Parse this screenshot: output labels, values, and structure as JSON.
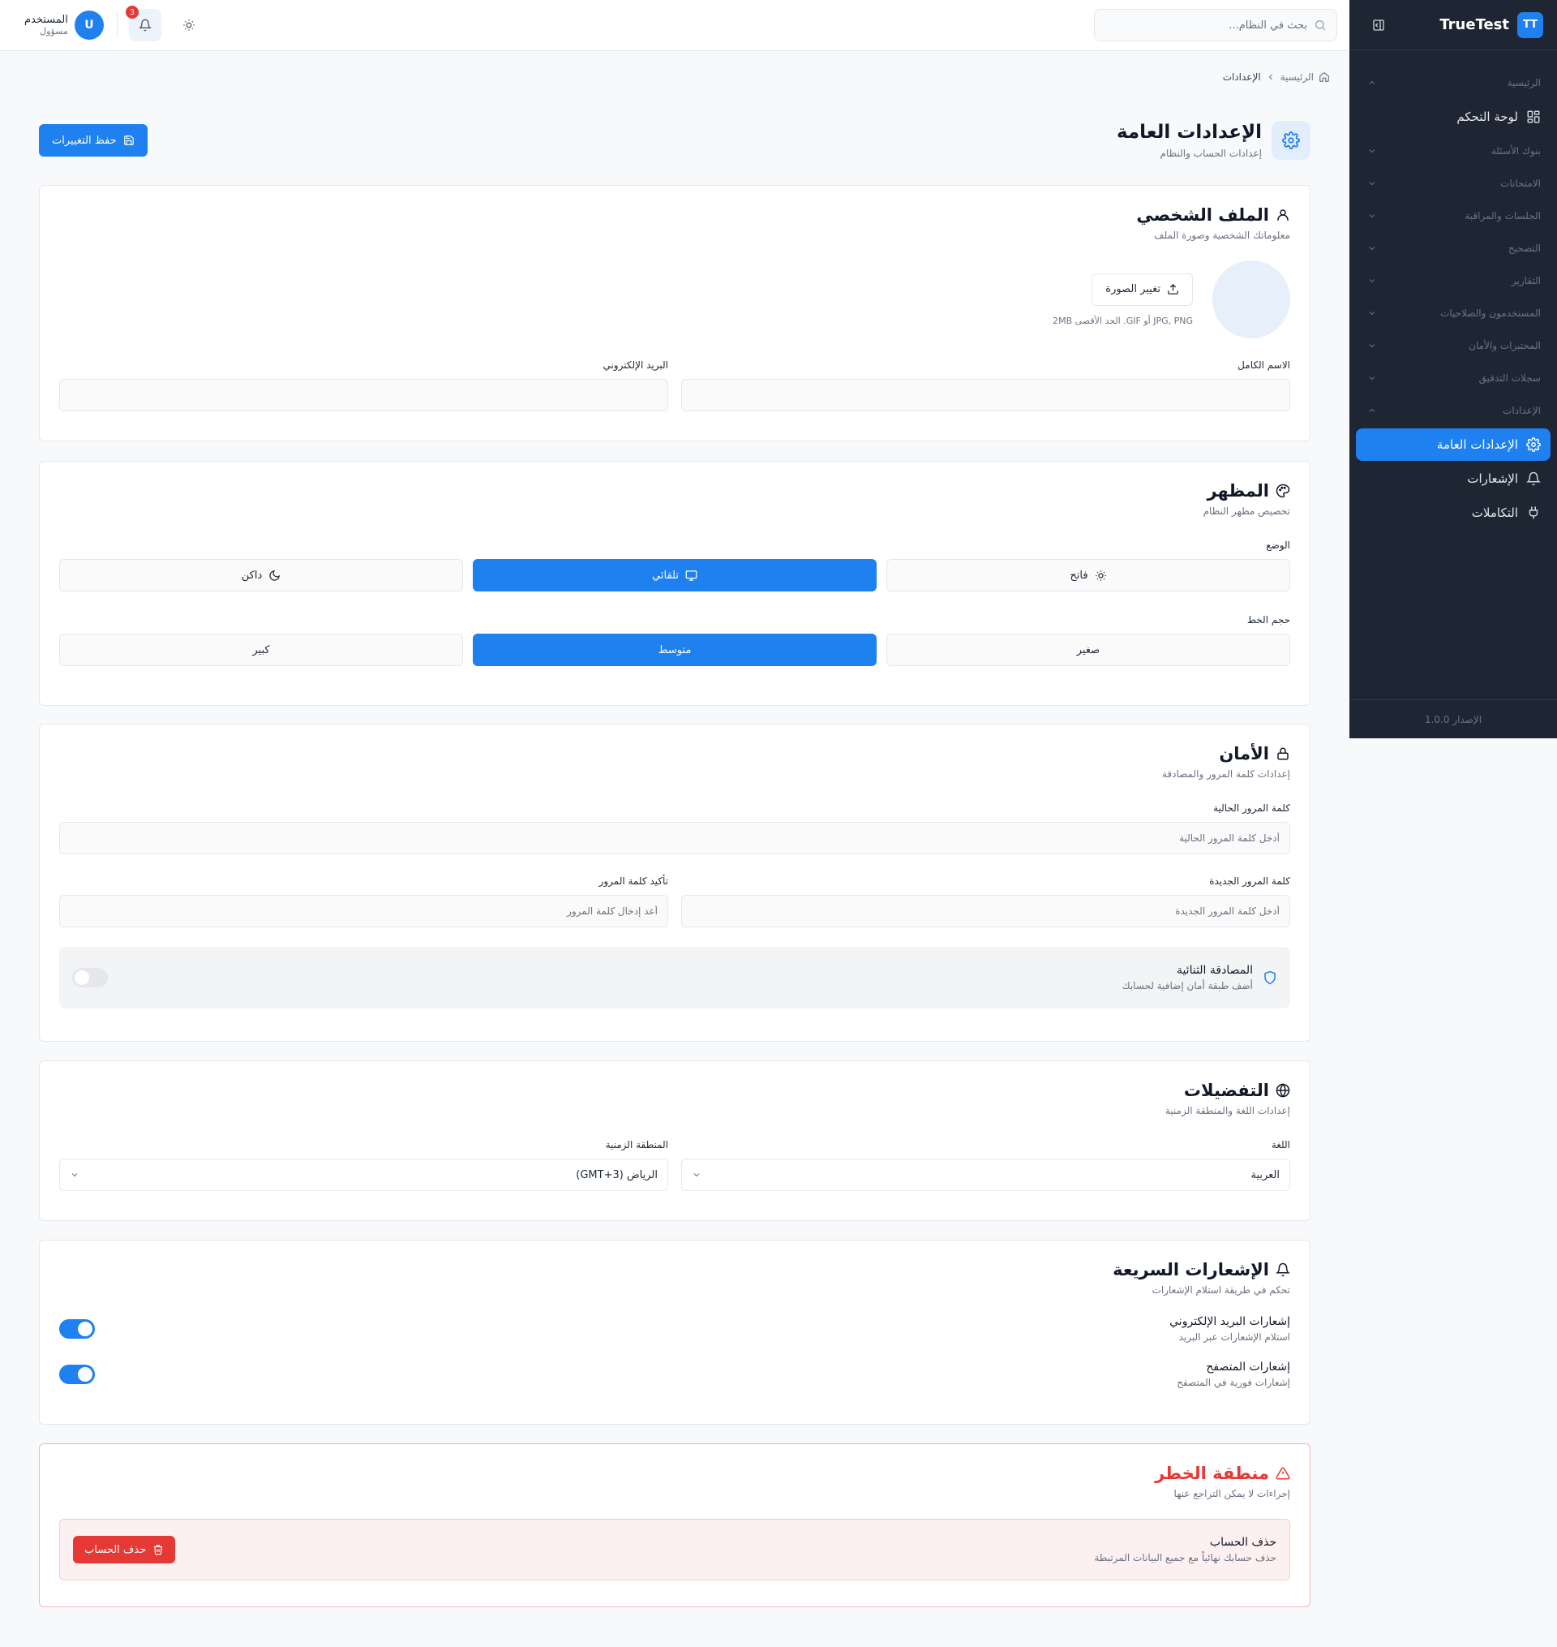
{
  "brand": {
    "logo_text": "TT",
    "name": "TrueTest"
  },
  "sidebar": {
    "items": [
      {
        "type": "group",
        "label": "الرئيسية",
        "expanded": true
      },
      {
        "type": "item",
        "label": "لوحة التحكم",
        "icon": "dashboard-icon"
      },
      {
        "type": "group",
        "label": "بنوك الأسئلة"
      },
      {
        "type": "group",
        "label": "الامتحانات"
      },
      {
        "type": "group",
        "label": "الجلسات والمراقبة"
      },
      {
        "type": "group",
        "label": "التصحيح"
      },
      {
        "type": "group",
        "label": "التقارير"
      },
      {
        "type": "group",
        "label": "المستخدمون والصلاحيات"
      },
      {
        "type": "group",
        "label": "المختبرات والأمان"
      },
      {
        "type": "group",
        "label": "سجلات التدقيق"
      },
      {
        "type": "group",
        "label": "الإعدادات",
        "expanded": true
      },
      {
        "type": "item",
        "label": "الإعدادات العامة",
        "icon": "gear-icon",
        "active": true
      },
      {
        "type": "item",
        "label": "الإشعارات",
        "icon": "bell-icon"
      },
      {
        "type": "item",
        "label": "التكاملات",
        "icon": "plug-icon"
      }
    ],
    "version": "الإصدار 1.0.0"
  },
  "topbar": {
    "search_placeholder": "بحث في النظام...",
    "notification_count": "3",
    "user": {
      "initial": "U",
      "name": "المستخدم",
      "role": "مسؤول"
    }
  },
  "breadcrumb": {
    "home": "الرئيسية",
    "current": "الإعدادات"
  },
  "page": {
    "title": "الإعدادات العامة",
    "subtitle": "إعدادات الحساب والنظام",
    "save_label": "حفظ التغييرات"
  },
  "profile": {
    "title": "الملف الشخصي",
    "subtitle": "معلوماتك الشخصية وصورة الملف",
    "change_photo_label": "تغيير الصورة",
    "photo_hint": "JPG, PNG أو GIF. الحد الأقصى 2MB",
    "fullname_label": "الاسم الكامل",
    "fullname_value": "",
    "email_label": "البريد الإلكتروني",
    "email_value": ""
  },
  "appearance": {
    "title": "المظهر",
    "subtitle": "تخصيص مظهر النظام",
    "mode_label": "الوضع",
    "modes": {
      "light": "فاتح",
      "auto": "تلقائي",
      "dark": "داكن"
    },
    "selected_mode": "auto",
    "font_size_label": "حجم الخط",
    "font_sizes": {
      "small": "صغير",
      "medium": "متوسط",
      "large": "كبير"
    },
    "selected_font_size": "medium"
  },
  "security": {
    "title": "الأمان",
    "subtitle": "إعدادات كلمة المرور والمصادقة",
    "current_password_label": "كلمة المرور الحالية",
    "current_password_placeholder": "أدخل كلمة المرور الحالية",
    "new_password_label": "كلمة المرور الجديدة",
    "new_password_placeholder": "أدخل كلمة المرور الجديدة",
    "confirm_password_label": "تأكيد كلمة المرور",
    "confirm_password_placeholder": "أعد إدخال كلمة المرور",
    "twofa_title": "المصادقة الثنائية",
    "twofa_desc": "أضف طبقة أمان إضافية لحسابك",
    "twofa_enabled": false
  },
  "preferences": {
    "title": "التفضيلات",
    "subtitle": "إعدادات اللغة والمنطقة الزمنية",
    "language_label": "اللغة",
    "language_value": "العربية",
    "timezone_label": "المنطقة الزمنية",
    "timezone_value": "الرياض (GMT+3)"
  },
  "quick_notifications": {
    "title": "الإشعارات السريعة",
    "subtitle": "تحكم في طريقة استلام الإشعارات",
    "email_title": "إشعارات البريد الإلكتروني",
    "email_desc": "استلام الإشعارات عبر البريد",
    "email_enabled": true,
    "browser_title": "إشعارات المتصفح",
    "browser_desc": "إشعارات فورية في المتصفح",
    "browser_enabled": true
  },
  "danger": {
    "title": "منطقة الخطر",
    "subtitle": "إجراءات لا يمكن التراجع عنها",
    "delete_title": "حذف الحساب",
    "delete_desc": "حذف حسابك نهائياً مع جميع البيانات المرتبطة",
    "delete_label": "حذف الحساب"
  },
  "colors": {
    "accent": "#1f80f0",
    "sidebar_bg": "#1e2633",
    "danger": "#e53935"
  }
}
